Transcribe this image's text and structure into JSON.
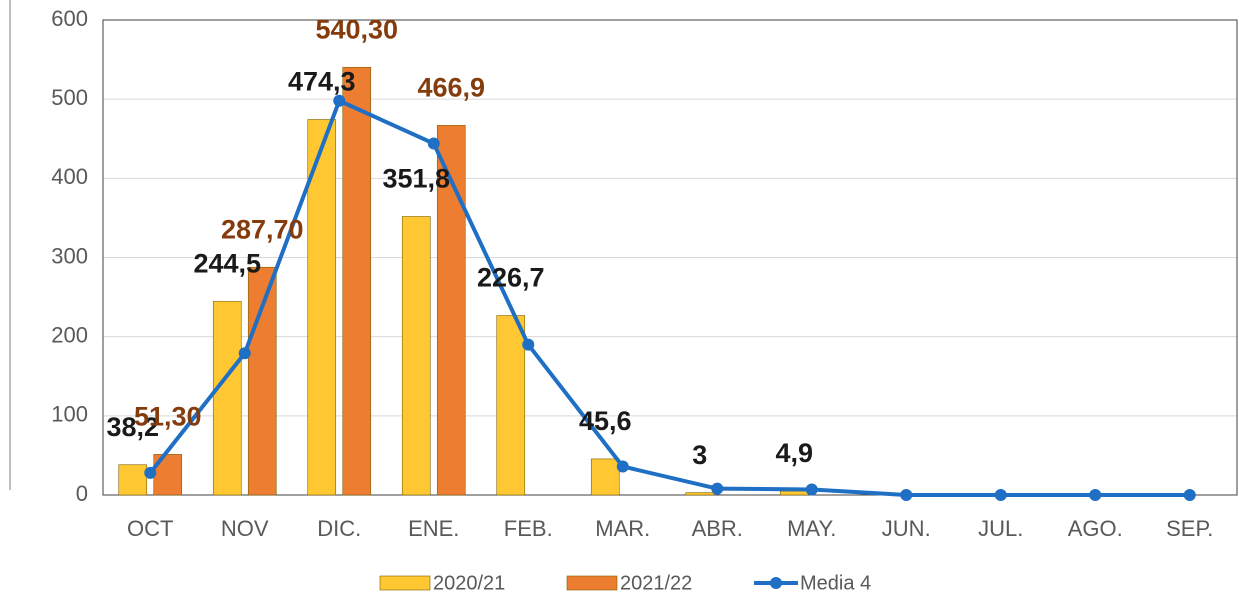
{
  "chart_data": {
    "type": "bar",
    "categories": [
      "OCT",
      "NOV",
      "DIC.",
      "ENE.",
      "FEB.",
      "MAR.",
      "ABR.",
      "MAY.",
      "JUN.",
      "JUL.",
      "AGO.",
      "SEP."
    ],
    "series": [
      {
        "name": "2020/21",
        "type": "bar",
        "color": "#ffc832",
        "values": [
          38.2,
          244.5,
          474.3,
          351.8,
          226.7,
          45.6,
          3,
          4.9,
          null,
          null,
          null,
          null
        ],
        "value_labels": [
          "38,2",
          "244,5",
          "474,3",
          "351,8",
          "226,7",
          "45,6",
          "3",
          "4,9",
          null,
          null,
          null,
          null
        ],
        "label_color": "#1a1a1a"
      },
      {
        "name": "2021/22",
        "type": "bar",
        "color": "#ed7d31",
        "values": [
          51.3,
          287.7,
          540.3,
          466.9,
          null,
          null,
          null,
          null,
          null,
          null,
          null,
          null
        ],
        "value_labels": [
          "51,30",
          "287,70",
          "540,30",
          "466,9",
          null,
          null,
          null,
          null,
          null,
          null,
          null,
          null
        ],
        "label_color": "#843c0c"
      },
      {
        "name": "Media 4",
        "type": "line",
        "color": "#1f6fc5",
        "values": [
          28,
          179,
          498,
          444,
          190,
          36,
          8,
          7,
          0,
          0,
          0,
          0
        ]
      }
    ],
    "ylim": [
      0,
      600
    ],
    "yticks": [
      0,
      100,
      200,
      300,
      400,
      500,
      600
    ],
    "grid": true,
    "legend": "bottom"
  }
}
